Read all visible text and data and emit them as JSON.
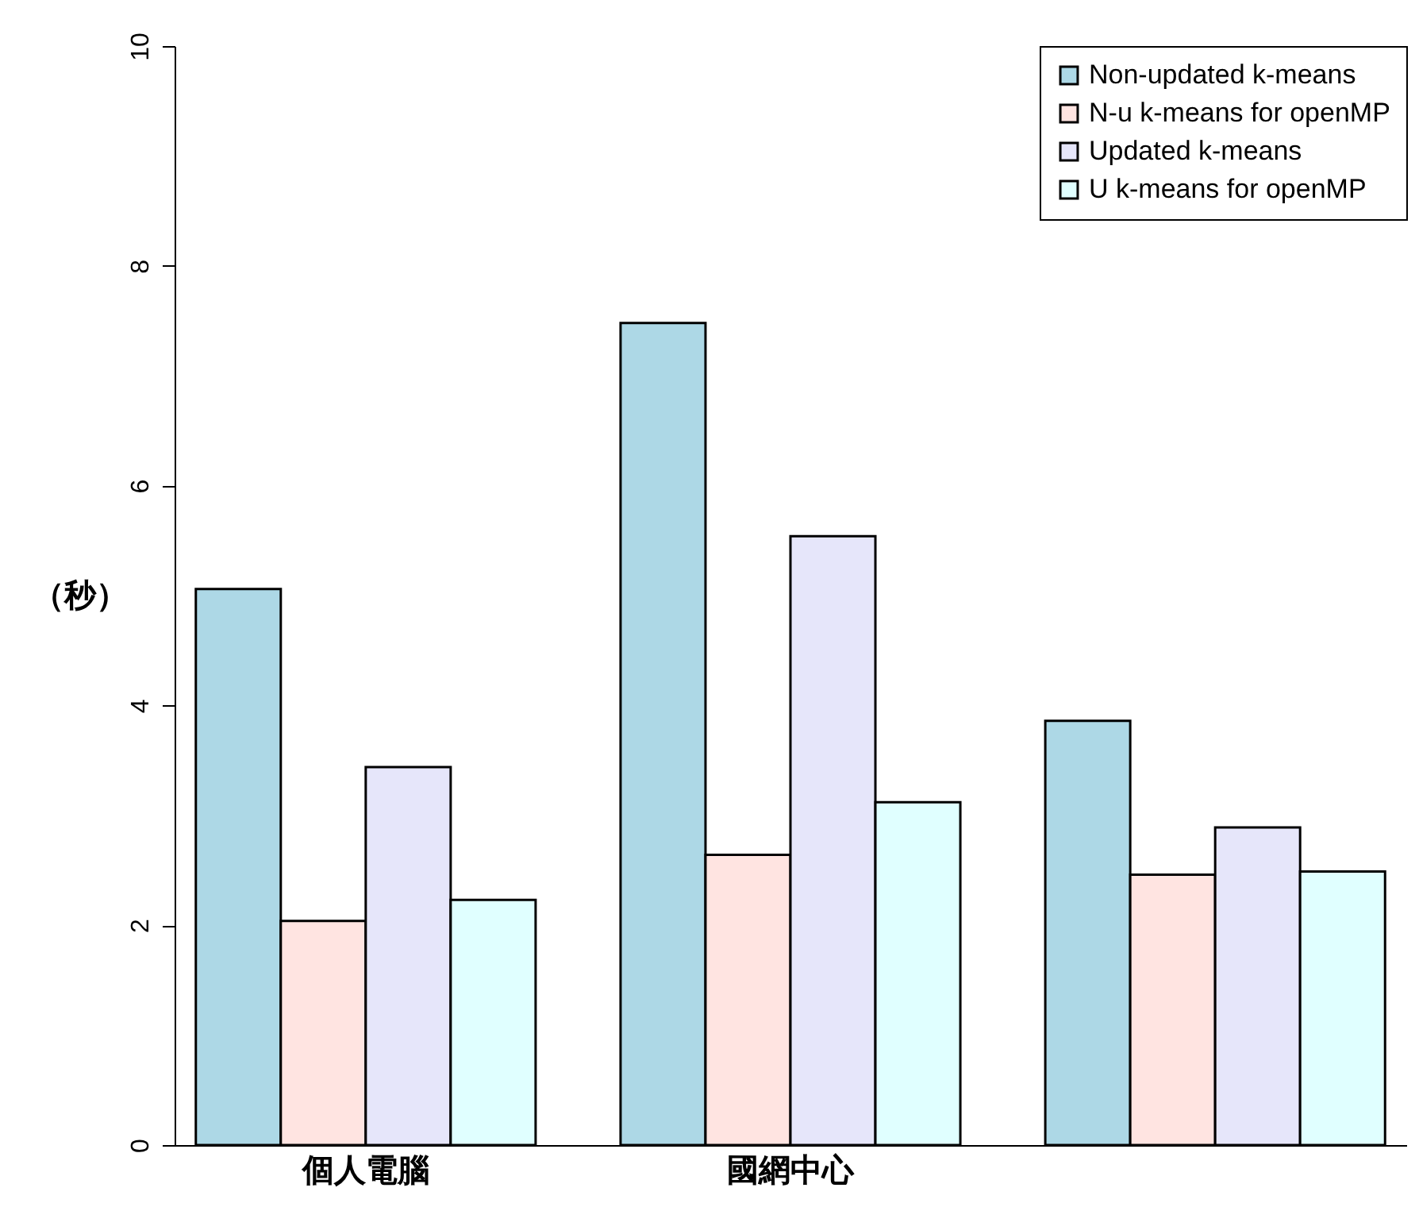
{
  "chart_data": {
    "type": "bar",
    "ylabel": "（秒）",
    "categories": [
      "個人電腦",
      "國網中心",
      null
    ],
    "series": [
      {
        "name": "Non-updated k-means",
        "color": "#add8e6",
        "values": [
          5.06,
          7.48,
          3.86
        ]
      },
      {
        "name": "N-u k-means for openMP",
        "color": "#ffe4e1",
        "values": [
          2.04,
          2.64,
          2.46
        ]
      },
      {
        "name": "Updated k-means",
        "color": "#e6e6fa",
        "values": [
          3.44,
          5.54,
          2.89
        ]
      },
      {
        "name": "U k-means for openMP",
        "color": "#e0ffff",
        "values": [
          2.23,
          3.12,
          2.49
        ]
      }
    ],
    "ylim": [
      0,
      10
    ],
    "yticks": [
      0,
      2,
      4,
      6,
      8,
      10
    ],
    "legend": "top right",
    "grid": false
  }
}
